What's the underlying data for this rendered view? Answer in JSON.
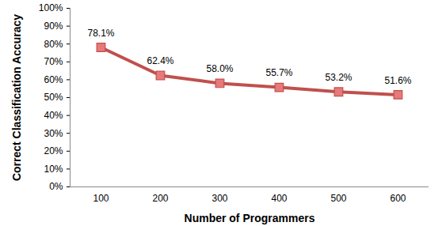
{
  "chart_data": {
    "type": "line",
    "x_label": "Number of Programmers",
    "y_label": "Correct Classification Accuracy",
    "categories": [
      "100",
      "200",
      "300",
      "400",
      "500",
      "600"
    ],
    "values": [
      78.1,
      62.4,
      58.0,
      55.7,
      53.2,
      51.6
    ],
    "value_labels": [
      "78.1%",
      "62.4%",
      "58.0%",
      "55.7%",
      "53.2%",
      "51.6%"
    ],
    "data_labels": true,
    "color": "#c0504d",
    "marker": "square",
    "grid": false,
    "ylim": [
      0,
      100
    ],
    "yticks": [
      {
        "value": 0,
        "label": "0%"
      },
      {
        "value": 10,
        "label": "10%"
      },
      {
        "value": 20,
        "label": "20%"
      },
      {
        "value": 30,
        "label": "30%"
      },
      {
        "value": 40,
        "label": "40%"
      },
      {
        "value": 50,
        "label": "50%"
      },
      {
        "value": 60,
        "label": "60%"
      },
      {
        "value": 70,
        "label": "70%"
      },
      {
        "value": 80,
        "label": "80%"
      },
      {
        "value": 90,
        "label": "90%"
      },
      {
        "value": 100,
        "label": "100%"
      }
    ]
  }
}
